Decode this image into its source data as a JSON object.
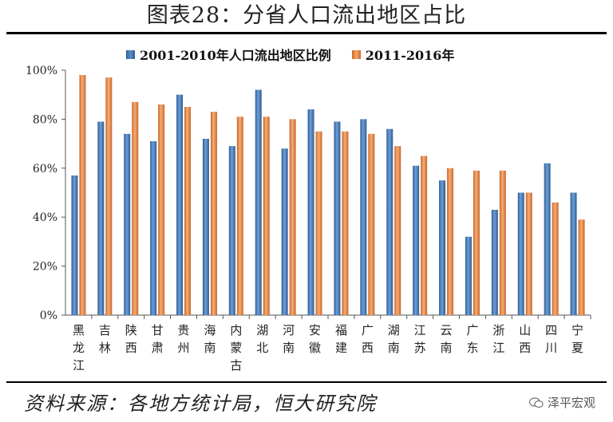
{
  "header": {
    "title": "图表28：分省人口流出地区占比"
  },
  "legend": {
    "series1": "2001-2010年人口流出地区比例",
    "series2": "2011-2016年"
  },
  "footer": {
    "source": "资料来源：各地方统计局，恒大研究院",
    "watermark": "泽平宏观"
  },
  "colors": {
    "series1": "#4f81bd",
    "series2": "#f79646"
  },
  "chart_data": {
    "type": "bar",
    "title": "图表28：分省人口流出地区占比",
    "xlabel": "",
    "ylabel": "",
    "ylim": [
      0,
      100
    ],
    "yticks": [
      "0%",
      "20%",
      "40%",
      "60%",
      "80%",
      "100%"
    ],
    "grid": false,
    "legend_position": "top",
    "categories": [
      "黑龙江",
      "吉林",
      "陕西",
      "甘肃",
      "贵州",
      "海南",
      "内蒙古",
      "湖北",
      "河南",
      "安徽",
      "福建",
      "广西",
      "湖南",
      "江苏",
      "云南",
      "广东",
      "浙江",
      "山西",
      "四川",
      "宁夏"
    ],
    "series": [
      {
        "name": "2001-2010年人口流出地区比例",
        "values": [
          57,
          79,
          74,
          71,
          90,
          72,
          69,
          92,
          68,
          84,
          79,
          80,
          76,
          61,
          55,
          32,
          43,
          50,
          62,
          50
        ]
      },
      {
        "name": "2011-2016年",
        "values": [
          98,
          97,
          87,
          86,
          85,
          83,
          81,
          81,
          80,
          75,
          75,
          74,
          69,
          65,
          60,
          59,
          59,
          50,
          46,
          39
        ]
      }
    ]
  }
}
